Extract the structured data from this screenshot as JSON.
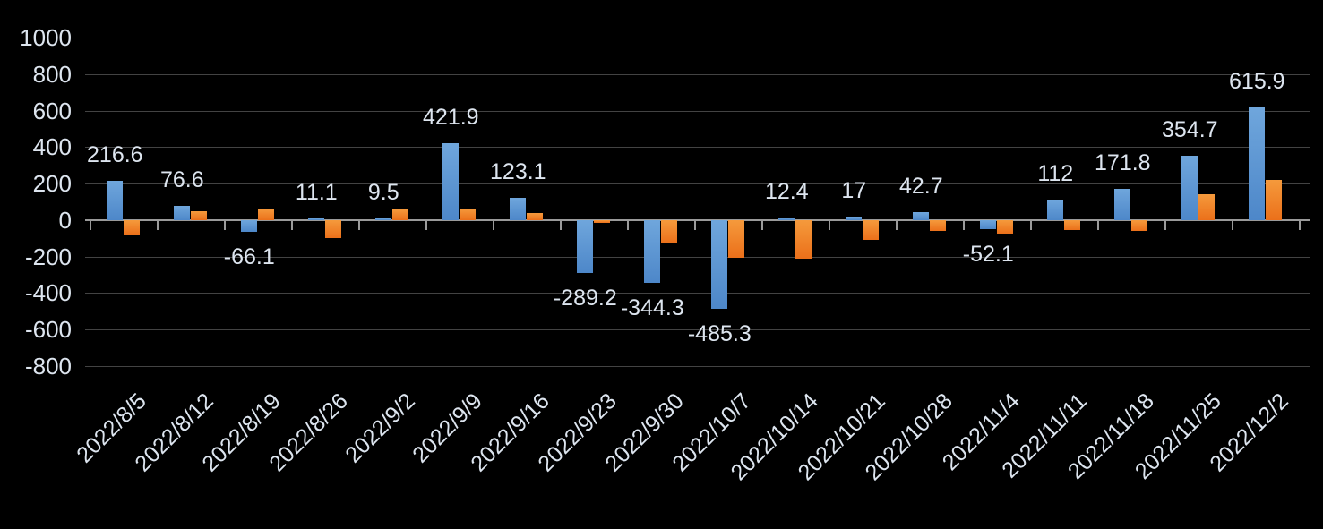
{
  "chart_data": {
    "type": "bar",
    "title": "",
    "legend": false,
    "grid": true,
    "background": "#000000",
    "categories": [
      "2022/8/5",
      "2022/8/12",
      "2022/8/19",
      "2022/8/26",
      "2022/9/2",
      "2022/9/9",
      "2022/9/16",
      "2022/9/23",
      "2022/9/30",
      "2022/10/7",
      "2022/10/14",
      "2022/10/21",
      "2022/10/28",
      "2022/11/4",
      "2022/11/11",
      "2022/11/18",
      "2022/11/25",
      "2022/12/2"
    ],
    "series": [
      {
        "name": "blue-series",
        "color": "#5b9bd5",
        "gradient_top": "#6fa6dc",
        "gradient_bottom": "#4d87c9",
        "values": [
          216.6,
          76.6,
          -66.1,
          11.1,
          9.5,
          421.9,
          123.1,
          -289.2,
          -344.3,
          -485.3,
          12.4,
          17,
          42.7,
          -52.1,
          112,
          171.8,
          354.7,
          615.9
        ],
        "data_labels": [
          "216.6",
          "76.6",
          "-66.1",
          "11.1",
          "9.5",
          "421.9",
          "123.1",
          "-289.2",
          "-344.3",
          "-485.3",
          "12.4",
          "17",
          "42.7",
          "-52.1",
          "112",
          "171.8",
          "354.7",
          "615.9"
        ]
      },
      {
        "name": "orange-series",
        "color": "#ed7d31",
        "gradient_top": "#f59a3c",
        "gradient_bottom": "#eb701a",
        "values": [
          -78,
          48,
          62,
          -100,
          60,
          62,
          38,
          -15,
          -130,
          -210,
          -213,
          -110,
          -60,
          -77,
          -57,
          -60,
          140,
          218
        ],
        "data_labels": null
      }
    ],
    "y_axis": {
      "min": -800,
      "max": 1000,
      "step": 200,
      "tick_labels": [
        "1000",
        "800",
        "600",
        "400",
        "200",
        "0",
        "-200",
        "-400",
        "-600",
        "-800"
      ]
    },
    "x_axis": {
      "label_rotation_deg": -45
    },
    "colors": {
      "grid_line": "#434343",
      "axis_line": "#9a9a9a",
      "text": "#dde5ef"
    }
  }
}
